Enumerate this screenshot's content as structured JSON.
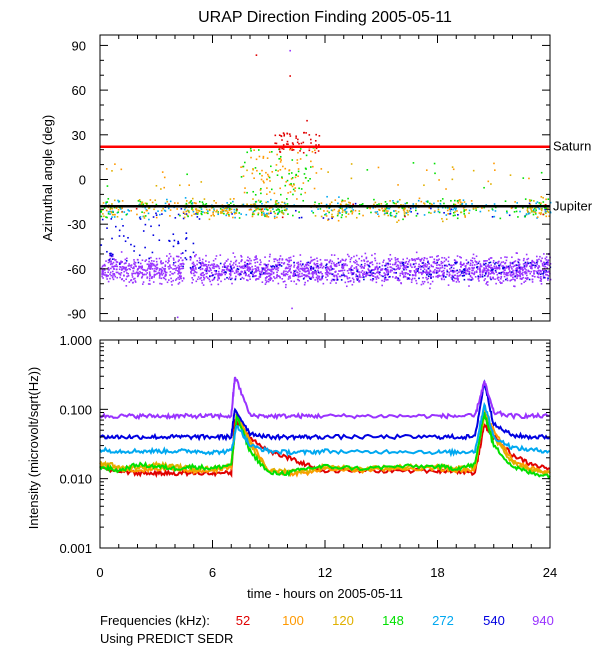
{
  "chart_data": [
    {
      "type": "scatter",
      "title": "URAP Direction Finding  2005-05-11",
      "ylabel": "Azimuthal angle (deg)",
      "xlabel": "",
      "xlim": [
        0,
        24
      ],
      "ylim": [
        -95,
        97
      ],
      "yticks": [
        90,
        60,
        30,
        0,
        -30,
        -60,
        -90
      ],
      "reference_lines": [
        {
          "name": "Saturn",
          "y": 22,
          "color": "#ff0000"
        },
        {
          "name": "Jupiter",
          "y": -18,
          "color": "#000000"
        }
      ],
      "series": [
        {
          "name": "52",
          "color": "#e00000",
          "description": "sparse points near +20..+30 deg around 9.5-11 h, scattered near -20 deg"
        },
        {
          "name": "100",
          "color": "#ff9900",
          "description": "band near -20 deg, excursions up to +20 deg at 8-11 h"
        },
        {
          "name": "120",
          "color": "#e0b000",
          "description": "band near -20 deg"
        },
        {
          "name": "148",
          "color": "#00e000",
          "description": "band near -15..-25 deg, scattered to +10"
        },
        {
          "name": "272",
          "color": "#00a8f0",
          "description": "band near -20 deg"
        },
        {
          "name": "540",
          "color": "#0000e0",
          "description": "scattered -25..-55 deg, 0-4 h; band near -60"
        },
        {
          "name": "940",
          "color": "#9933ff",
          "description": "dense band around -60 deg (-50..-70) all day"
        }
      ]
    },
    {
      "type": "line",
      "title": "",
      "ylabel": "Intensity (microvolt/sqrt(Hz))",
      "xlabel": "time - hours on 2005-05-11",
      "xscale": "linear",
      "yscale": "log",
      "xlim": [
        0,
        24
      ],
      "ylim": [
        0.001,
        1.0
      ],
      "xticks": [
        0,
        6,
        12,
        18,
        24
      ],
      "ytick_labels": [
        "1.000",
        "0.100",
        "0.010",
        "0.001"
      ],
      "series": [
        {
          "name": "52",
          "color": "#e00000",
          "x": [
            0,
            1,
            2,
            3,
            4,
            5,
            6,
            7,
            7.2,
            8,
            9,
            10,
            11,
            12,
            14,
            16,
            18,
            19,
            20,
            20.5,
            21,
            22,
            23,
            24
          ],
          "y": [
            0.014,
            0.013,
            0.012,
            0.012,
            0.012,
            0.012,
            0.012,
            0.012,
            0.07,
            0.04,
            0.025,
            0.02,
            0.016,
            0.013,
            0.013,
            0.013,
            0.013,
            0.013,
            0.012,
            0.06,
            0.04,
            0.022,
            0.016,
            0.014
          ]
        },
        {
          "name": "100",
          "color": "#ff9900",
          "x": [
            0,
            1,
            2,
            3,
            4,
            5,
            6,
            7,
            7.3,
            8,
            9,
            10,
            11,
            12,
            14,
            16,
            18,
            19,
            20,
            20.5,
            21,
            22,
            23,
            24
          ],
          "y": [
            0.016,
            0.014,
            0.013,
            0.014,
            0.014,
            0.013,
            0.013,
            0.015,
            0.09,
            0.035,
            0.013,
            0.012,
            0.012,
            0.014,
            0.013,
            0.014,
            0.014,
            0.013,
            0.014,
            0.09,
            0.05,
            0.018,
            0.014,
            0.012
          ]
        },
        {
          "name": "120",
          "color": "#e0b000",
          "x": [
            0,
            1,
            2,
            3,
            4,
            5,
            6,
            7,
            7.3,
            8,
            9,
            10,
            11,
            12,
            14,
            16,
            18,
            19,
            20,
            20.5,
            21,
            22,
            23,
            24
          ],
          "y": [
            0.017,
            0.015,
            0.014,
            0.016,
            0.015,
            0.014,
            0.014,
            0.016,
            0.085,
            0.03,
            0.013,
            0.013,
            0.013,
            0.015,
            0.014,
            0.015,
            0.015,
            0.014,
            0.015,
            0.08,
            0.04,
            0.017,
            0.013,
            0.012
          ]
        },
        {
          "name": "148",
          "color": "#00e000",
          "x": [
            0,
            1,
            2,
            3,
            4,
            5,
            6,
            7,
            7.3,
            8,
            9,
            10,
            11,
            12,
            14,
            16,
            18,
            19,
            20,
            20.5,
            21,
            22,
            23,
            24
          ],
          "y": [
            0.015,
            0.013,
            0.016,
            0.015,
            0.014,
            0.015,
            0.014,
            0.016,
            0.08,
            0.025,
            0.012,
            0.012,
            0.014,
            0.015,
            0.014,
            0.015,
            0.015,
            0.014,
            0.016,
            0.09,
            0.03,
            0.015,
            0.012,
            0.011
          ]
        },
        {
          "name": "272",
          "color": "#00a8f0",
          "x": [
            0,
            1,
            2,
            3,
            4,
            5,
            6,
            7,
            7.3,
            8,
            9,
            10,
            11,
            12,
            14,
            16,
            18,
            19,
            20,
            20.5,
            21,
            22,
            23,
            24
          ],
          "y": [
            0.026,
            0.025,
            0.025,
            0.025,
            0.025,
            0.025,
            0.024,
            0.025,
            0.06,
            0.03,
            0.025,
            0.024,
            0.024,
            0.025,
            0.024,
            0.025,
            0.024,
            0.024,
            0.025,
            0.12,
            0.04,
            0.028,
            0.026,
            0.025
          ]
        },
        {
          "name": "540",
          "color": "#0000e0",
          "x": [
            0,
            1,
            2,
            3,
            4,
            5,
            6,
            7,
            7.2,
            8,
            9,
            10,
            11,
            12,
            14,
            16,
            18,
            19,
            20,
            20.5,
            21,
            22,
            23,
            24
          ],
          "y": [
            0.04,
            0.04,
            0.04,
            0.04,
            0.04,
            0.04,
            0.04,
            0.04,
            0.1,
            0.045,
            0.04,
            0.04,
            0.04,
            0.04,
            0.04,
            0.04,
            0.04,
            0.04,
            0.04,
            0.25,
            0.06,
            0.042,
            0.04,
            0.04
          ]
        },
        {
          "name": "940",
          "color": "#9933ff",
          "x": [
            0,
            1,
            2,
            3,
            4,
            5,
            6,
            7,
            7.2,
            8,
            9,
            10,
            11,
            12,
            14,
            16,
            18,
            19,
            20,
            20.5,
            21,
            22,
            23,
            24
          ],
          "y": [
            0.08,
            0.08,
            0.08,
            0.08,
            0.08,
            0.08,
            0.08,
            0.08,
            0.3,
            0.082,
            0.08,
            0.08,
            0.08,
            0.08,
            0.08,
            0.08,
            0.08,
            0.08,
            0.08,
            0.25,
            0.09,
            0.08,
            0.08,
            0.08
          ]
        }
      ]
    }
  ],
  "legend": {
    "label": "Frequencies (kHz):",
    "items": [
      {
        "label": "52",
        "color": "#e00000"
      },
      {
        "label": "100",
        "color": "#ff9900"
      },
      {
        "label": "120",
        "color": "#e0b000"
      },
      {
        "label": "148",
        "color": "#00e000"
      },
      {
        "label": "272",
        "color": "#00a8f0"
      },
      {
        "label": "540",
        "color": "#0000e0"
      },
      {
        "label": "940",
        "color": "#9933ff"
      }
    ]
  },
  "footer": "Using PREDICT SEDR"
}
